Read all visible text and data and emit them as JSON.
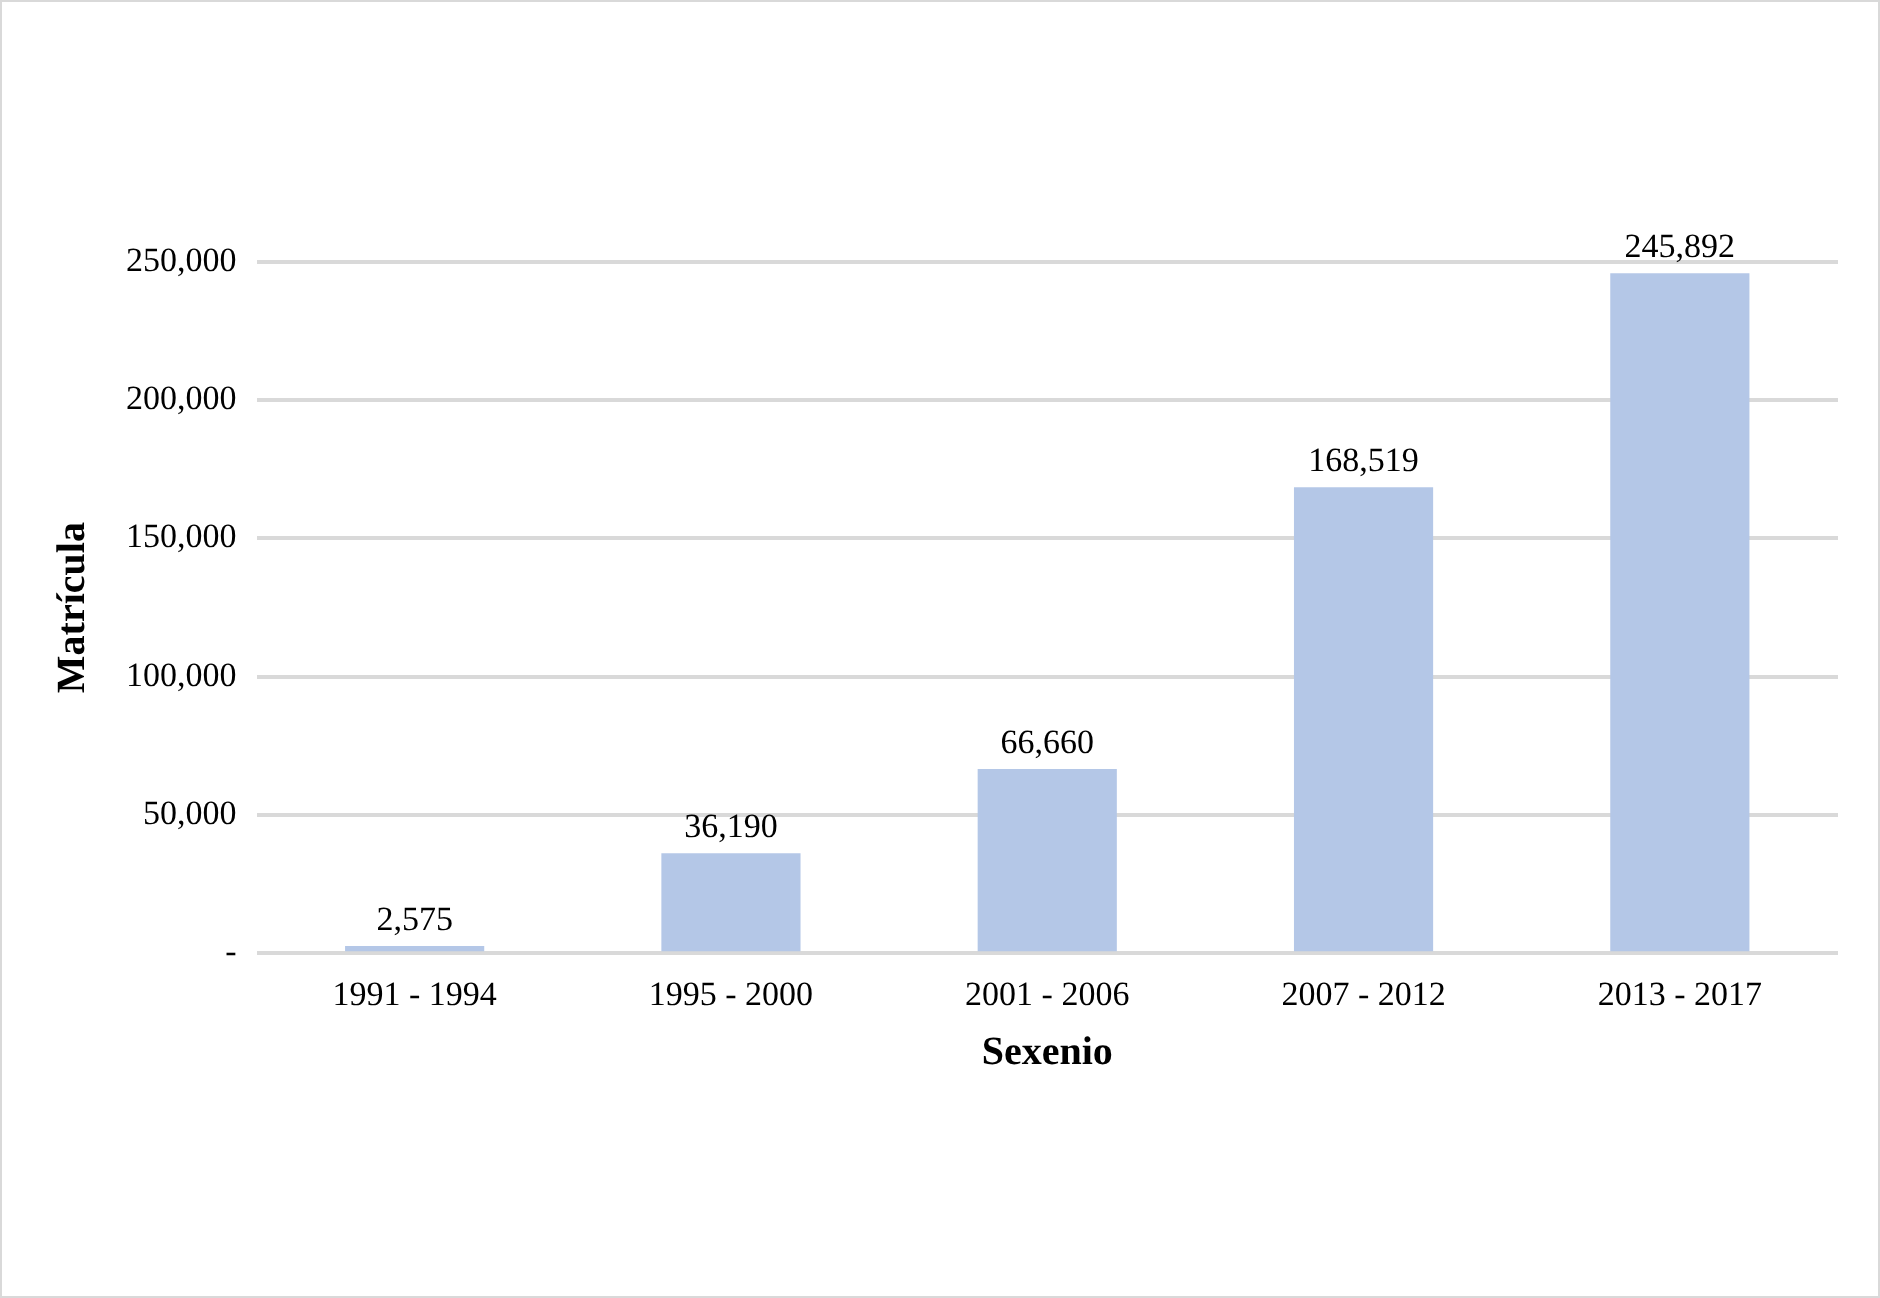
{
  "chart_data": {
    "type": "bar",
    "xlabel": "Sexenio",
    "ylabel": "Matrícula",
    "categories": [
      "1991 - 1994",
      "1995 - 2000",
      "2001 - 2006",
      "2007 - 2012",
      "2013 - 2017"
    ],
    "values": [
      2575,
      36190,
      66660,
      168519,
      245892
    ],
    "color": "#b4c7e7",
    "ylim": [
      0,
      250000
    ],
    "yticks": [
      {
        "value": 0,
        "label": "-"
      },
      {
        "value": 50000,
        "label": "50,000"
      },
      {
        "value": 100000,
        "label": "100,000"
      },
      {
        "value": 150000,
        "label": "150,000"
      },
      {
        "value": 200000,
        "label": "200,000"
      },
      {
        "value": 250000,
        "label": "250,000"
      }
    ],
    "value_labels": [
      "2,575",
      "36,190",
      "66,660",
      "168,519",
      "245,892"
    ],
    "grid": "y",
    "legend": false
  }
}
